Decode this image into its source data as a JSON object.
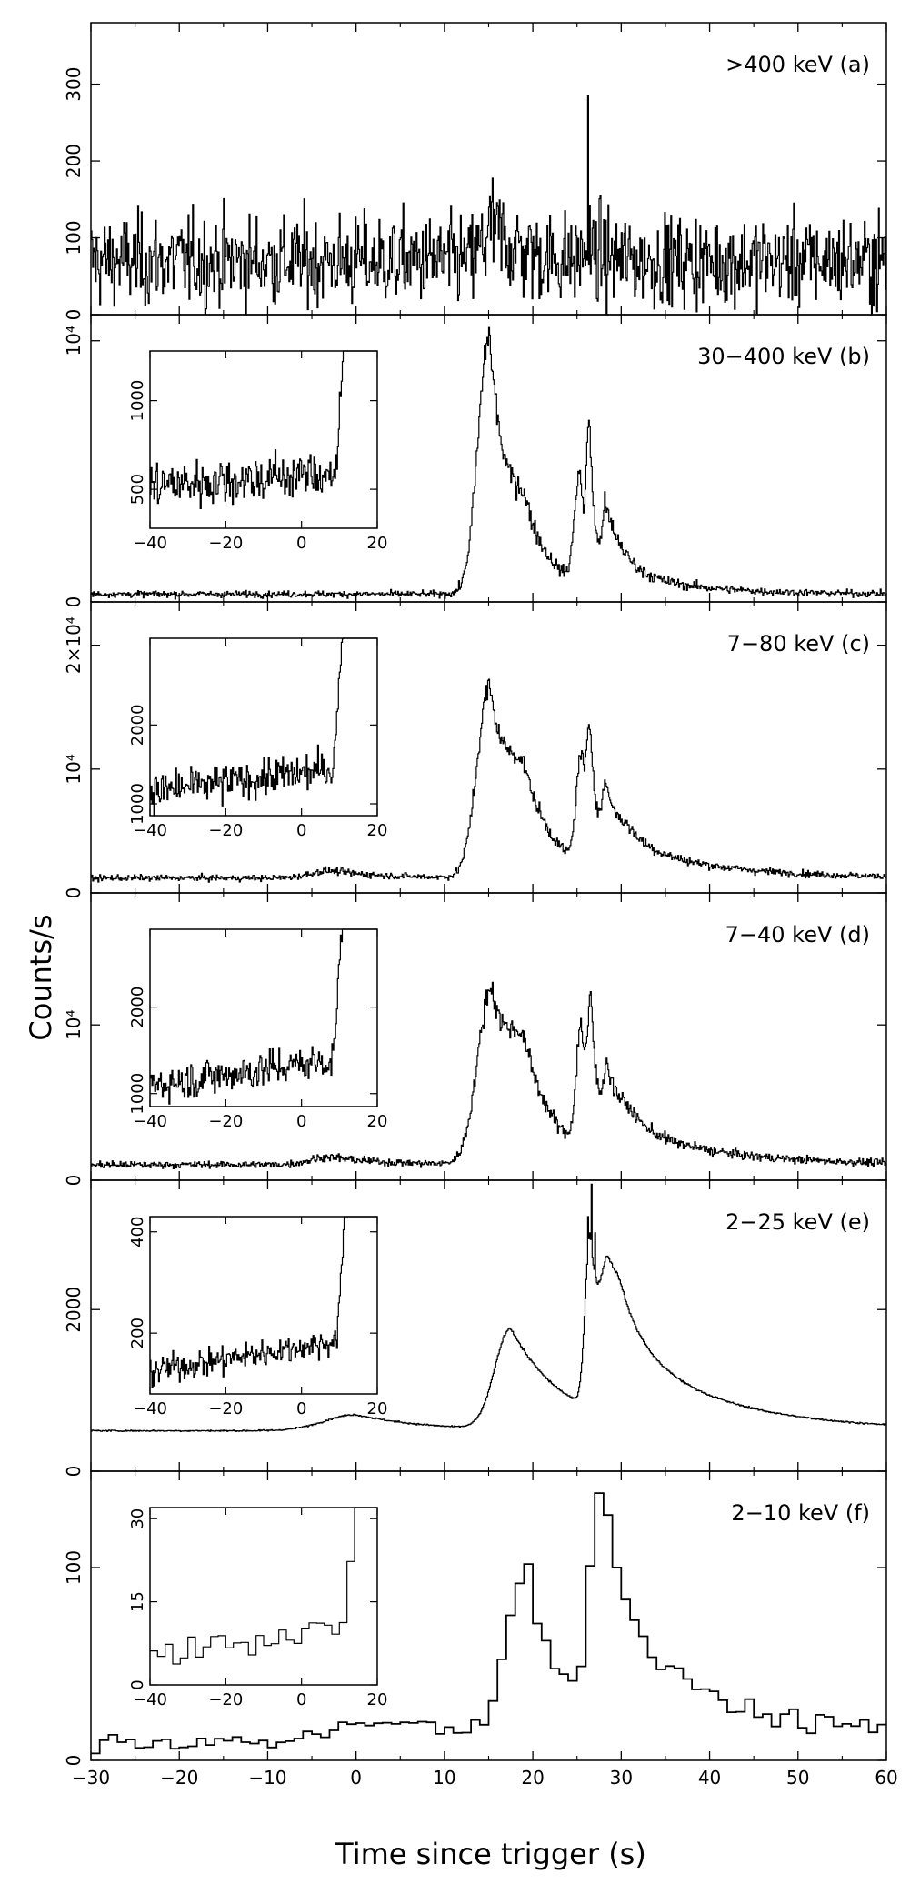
{
  "chart_data": {
    "type": "line",
    "style": "histogram",
    "stroke_color": "#000000",
    "background": "#ffffff",
    "xlabel": "Time since trigger (s)",
    "ylabel": "Counts/s",
    "xlim": [
      -30,
      60
    ],
    "xticks": [
      "−30",
      "−20",
      "−10",
      "0",
      "10",
      "20",
      "30",
      "40",
      "50",
      "60"
    ],
    "grid": false,
    "panels": [
      {
        "id": "a",
        "label": ">400 keV (a)",
        "ylim": [
          0,
          380
        ],
        "yticks": [
          {
            "v": 0,
            "t": "0"
          },
          {
            "v": 100,
            "t": "100"
          },
          {
            "v": 200,
            "t": "200"
          },
          {
            "v": 300,
            "t": "300"
          }
        ],
        "series": [
          {
            "bin_s": 0.1,
            "baseline": 70,
            "noise": "sqrt",
            "scale": 1,
            "components": [
              {
                "t": 15.5,
                "a": 40,
                "r": 1.5,
                "d": 3
              },
              {
                "t": 26.2,
                "a": 12,
                "r": 0.8,
                "d": 2
              }
            ],
            "spikes": [
              {
                "t": 26.2,
                "v": 285
              }
            ]
          }
        ]
      },
      {
        "id": "b",
        "label": "30−400 keV (b)",
        "ylim": [
          0,
          11000
        ],
        "yticks": [
          {
            "v": 0,
            "t": "0"
          },
          {
            "v": 10000,
            "t": "10⁴"
          }
        ],
        "series": [
          {
            "bin_s": 0.1,
            "baseline": 300,
            "noise": "sqrt",
            "scale": 1,
            "components": [
              {
                "t": 15.1,
                "a": 9900,
                "r": 1.8,
                "d": 2.2
              },
              {
                "t": 19.0,
                "a": 2200,
                "r": 2.0,
                "d": 3.5
              },
              {
                "t": 25.3,
                "a": 4300,
                "r": 0.8,
                "d": 0.9
              },
              {
                "t": 26.4,
                "a": 5200,
                "r": 0.4,
                "d": 0.6
              },
              {
                "t": 28.2,
                "a": 2500,
                "r": 0.5,
                "d": 1.8
              },
              {
                "t": 30.0,
                "a": 800,
                "r": 2.0,
                "d": 8
              }
            ]
          }
        ],
        "inset": {
          "xlim": [
            -40,
            20
          ],
          "ylim": [
            280,
            1280
          ],
          "xticks": [
            "−40",
            "−20",
            "0",
            "20"
          ],
          "yticks": [
            {
              "v": 500,
              "t": "500"
            },
            {
              "v": 1000,
              "t": "1000"
            }
          ],
          "baseline": 520,
          "slope": 1.5,
          "noise_amp": 70,
          "rise_at": 9,
          "rise_rate": 0.45
        }
      },
      {
        "id": "c",
        "label": "7−80 keV (c)",
        "ylim": [
          0,
          23500
        ],
        "yticks": [
          {
            "v": 0,
            "t": "0"
          },
          {
            "v": 10000,
            "t": "10⁴"
          },
          {
            "v": 20000,
            "t": "2×10⁴"
          }
        ],
        "series": [
          {
            "bin_s": 0.1,
            "baseline": 1200,
            "noise": "sqrt",
            "scale": 1,
            "components": [
              {
                "t": -3,
                "a": 600,
                "r": 3,
                "d": 6
              },
              {
                "t": 15.1,
                "a": 15000,
                "r": 2.0,
                "d": 2.8
              },
              {
                "t": 19.0,
                "a": 5500,
                "r": 2.5,
                "d": 3.5
              },
              {
                "t": 25.5,
                "a": 9000,
                "r": 0.8,
                "d": 1.0
              },
              {
                "t": 26.5,
                "a": 8000,
                "r": 0.5,
                "d": 0.8
              },
              {
                "t": 28.3,
                "a": 5000,
                "r": 0.6,
                "d": 2.0
              },
              {
                "t": 31.0,
                "a": 2500,
                "r": 2.5,
                "d": 10
              }
            ]
          }
        ],
        "inset": {
          "xlim": [
            -40,
            20
          ],
          "ylim": [
            850,
            3100
          ],
          "xticks": [
            "−40",
            "−20",
            "0",
            "20"
          ],
          "yticks": [
            {
              "v": 1000,
              "t": "1000"
            },
            {
              "v": 2000,
              "t": "2000"
            }
          ],
          "baseline": 1150,
          "slope": 6,
          "noise_amp": 120,
          "rise_at": 8,
          "rise_rate": 0.35
        }
      },
      {
        "id": "d",
        "label": "7−40 keV (d)",
        "ylim": [
          0,
          18500
        ],
        "yticks": [
          {
            "v": 0,
            "t": "0"
          },
          {
            "v": 10000,
            "t": "10⁴"
          }
        ],
        "series": [
          {
            "bin_s": 0.1,
            "baseline": 1000,
            "noise": "sqrt",
            "scale": 1,
            "components": [
              {
                "t": -3,
                "a": 500,
                "r": 3,
                "d": 6
              },
              {
                "t": 15.3,
                "a": 11000,
                "r": 2.2,
                "d": 3.0
              },
              {
                "t": 19.0,
                "a": 5000,
                "r": 2.5,
                "d": 3.5
              },
              {
                "t": 25.5,
                "a": 8000,
                "r": 0.8,
                "d": 1.0
              },
              {
                "t": 26.6,
                "a": 7000,
                "r": 0.5,
                "d": 0.8
              },
              {
                "t": 28.4,
                "a": 4200,
                "r": 0.6,
                "d": 2.0
              },
              {
                "t": 31.0,
                "a": 2200,
                "r": 2.5,
                "d": 10
              }
            ]
          }
        ],
        "inset": {
          "xlim": [
            -40,
            20
          ],
          "ylim": [
            850,
            2900
          ],
          "xticks": [
            "−40",
            "−20",
            "0",
            "20"
          ],
          "yticks": [
            {
              "v": 1000,
              "t": "1000"
            },
            {
              "v": 2000,
              "t": "2000"
            }
          ],
          "baseline": 1100,
          "slope": 6,
          "noise_amp": 110,
          "rise_at": 8,
          "rise_rate": 0.35
        }
      },
      {
        "id": "e",
        "label": "2−25 keV (e)",
        "ylim": [
          0,
          3600
        ],
        "yticks": [
          {
            "v": 0,
            "t": "0"
          },
          {
            "v": 2000,
            "t": "2000"
          }
        ],
        "series": [
          {
            "bin_s": 0.1,
            "baseline": 500,
            "noise": "sqrt",
            "scale": 0.06,
            "components": [
              {
                "t": 0,
                "a": 200,
                "r": 5,
                "d": 8
              },
              {
                "t": 17.5,
                "a": 1250,
                "r": 2.5,
                "d": 6.0
              },
              {
                "t": 26.5,
                "a": 2100,
                "r": 0.8,
                "d": 1.5
              },
              {
                "t": 28.5,
                "a": 900,
                "r": 1.0,
                "d": 3.0
              },
              {
                "t": 30.0,
                "a": 900,
                "r": 2.0,
                "d": 12
              }
            ],
            "spikes": [
              {
                "t": 26.6,
                "v": 3550
              },
              {
                "t": 26.2,
                "v": 3150
              },
              {
                "t": 27.0,
                "v": 2950
              }
            ]
          }
        ],
        "inset": {
          "xlim": [
            -40,
            20
          ],
          "ylim": [
            80,
            430
          ],
          "xticks": [
            "−40",
            "−20",
            "0",
            "20"
          ],
          "yticks": [
            {
              "v": 200,
              "t": "200"
            },
            {
              "v": 400,
              "t": "400"
            }
          ],
          "baseline": 125,
          "slope": 1.2,
          "noise_amp": 14,
          "rise_at": 9,
          "rise_rate": 0.5
        }
      },
      {
        "id": "f",
        "label": "2−10 keV (f)",
        "ylim": [
          0,
          150
        ],
        "yticks": [
          {
            "v": 0,
            "t": "0"
          },
          {
            "v": 100,
            "t": "100"
          }
        ],
        "series": [
          {
            "bin_s": 1.0,
            "baseline": 10,
            "noise": "fixed",
            "noise_amp": 3,
            "scale": 1,
            "components": [
              {
                "t": 5,
                "a": 10,
                "r": 8,
                "d": 10
              },
              {
                "t": 19.5,
                "a": 85,
                "r": 3.5,
                "d": 4.0
              },
              {
                "t": 27.5,
                "a": 120,
                "r": 1.5,
                "d": 5.5
              },
              {
                "t": 40,
                "a": 12,
                "r": 5,
                "d": 30
              }
            ]
          }
        ],
        "inset": {
          "xlim": [
            -40,
            20
          ],
          "ylim": [
            0,
            32
          ],
          "xticks": [
            "−40",
            "−20",
            "0",
            "20"
          ],
          "yticks": [
            {
              "v": 0,
              "t": "0"
            },
            {
              "v": 15,
              "t": "15"
            },
            {
              "v": 30,
              "t": "30"
            }
          ],
          "baseline": 5.5,
          "slope": 0.1,
          "noise_amp": 1.2,
          "rise_at": 10,
          "rise_rate": 0.6,
          "bin": 2
        }
      }
    ]
  }
}
